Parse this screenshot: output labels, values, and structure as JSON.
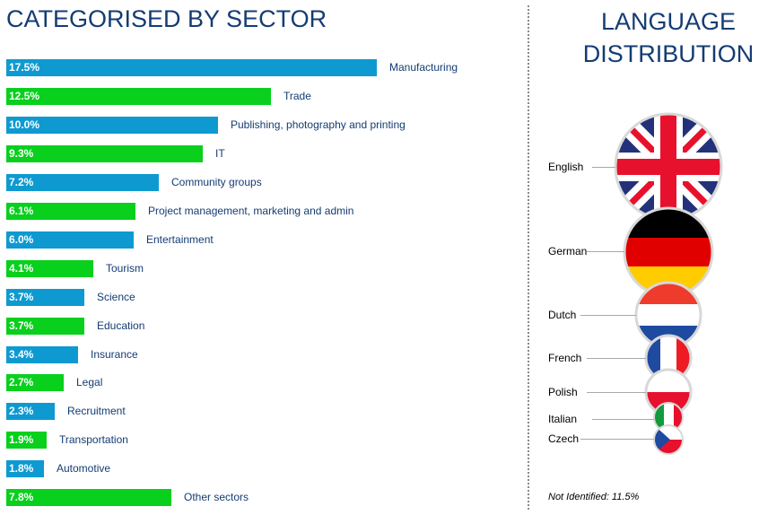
{
  "titles": {
    "sector": "CATEGORISED BY SECTOR",
    "language": "LANGUAGE DISTRIBUTION"
  },
  "colors": {
    "blue": "#0e9ad1",
    "green": "#08d01d",
    "navy": "#143c73"
  },
  "chart_data": [
    {
      "type": "bar",
      "orientation": "horizontal",
      "title": "CATEGORISED BY SECTOR",
      "categories": [
        "Manufacturing",
        "Trade",
        "Publishing, photography and printing",
        "IT",
        "Community groups",
        "Project management, marketing and admin",
        "Entertainment",
        "Tourism",
        "Science",
        "Education",
        "Insurance",
        "Legal",
        "Recruitment",
        "Transportation",
        "Automotive",
        "Other sectors"
      ],
      "values": [
        17.5,
        12.5,
        10.0,
        9.3,
        7.2,
        6.1,
        6.0,
        4.1,
        3.7,
        3.7,
        3.4,
        2.7,
        2.3,
        1.9,
        1.8,
        7.8
      ],
      "labels": [
        "17.5%",
        "12.5%",
        "10.0%",
        "9.3%",
        "7.2%",
        "6.1%",
        "6.0%",
        "4.1%",
        "3.7%",
        "3.7%",
        "3.4%",
        "2.7%",
        "2.3%",
        "1.9%",
        "1.8%",
        "7.8%"
      ],
      "bar_colors": [
        "blue",
        "green",
        "blue",
        "green",
        "blue",
        "green",
        "blue",
        "green",
        "blue",
        "green",
        "blue",
        "green",
        "blue",
        "green",
        "blue",
        "green"
      ]
    },
    {
      "type": "bubble",
      "title": "LANGUAGE DISTRIBUTION",
      "categories": [
        "English",
        "German",
        "Dutch",
        "French",
        "Polish",
        "Italian",
        "Czech"
      ],
      "flags": [
        "uk-flag-icon",
        "germany-flag-icon",
        "netherlands-flag-icon",
        "france-flag-icon",
        "poland-flag-icon",
        "italy-flag-icon",
        "czech-flag-icon"
      ],
      "footnote": "Not Identified: 11.5%"
    }
  ]
}
